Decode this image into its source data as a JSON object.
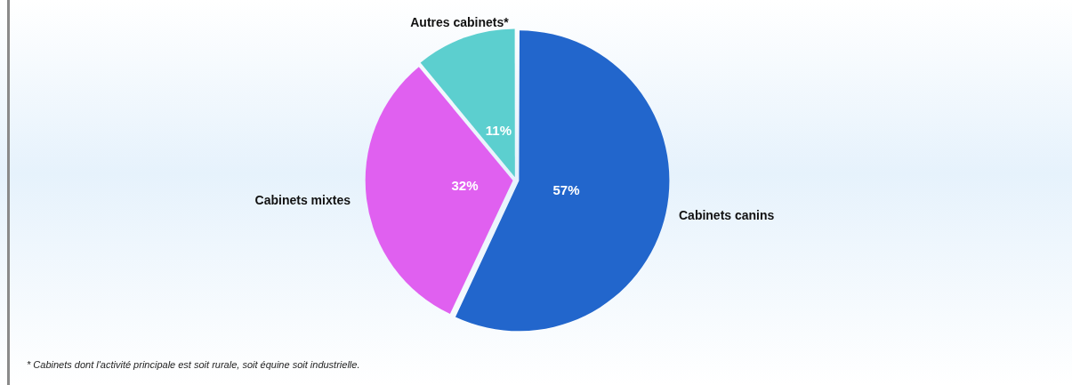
{
  "chart_data": {
    "type": "pie",
    "categories": [
      "Cabinets canins",
      "Cabinets mixtes",
      "Autres cabinets*"
    ],
    "values": [
      57,
      32,
      11
    ],
    "value_labels": [
      "57%",
      "32%",
      "11%"
    ],
    "colors": [
      "#2266cc",
      "#e060f0",
      "#5ccfcf"
    ],
    "legend": false,
    "annotations": [
      "* Cabinets dont l'activité principale est soit rurale, soit équine soit industrielle."
    ]
  }
}
